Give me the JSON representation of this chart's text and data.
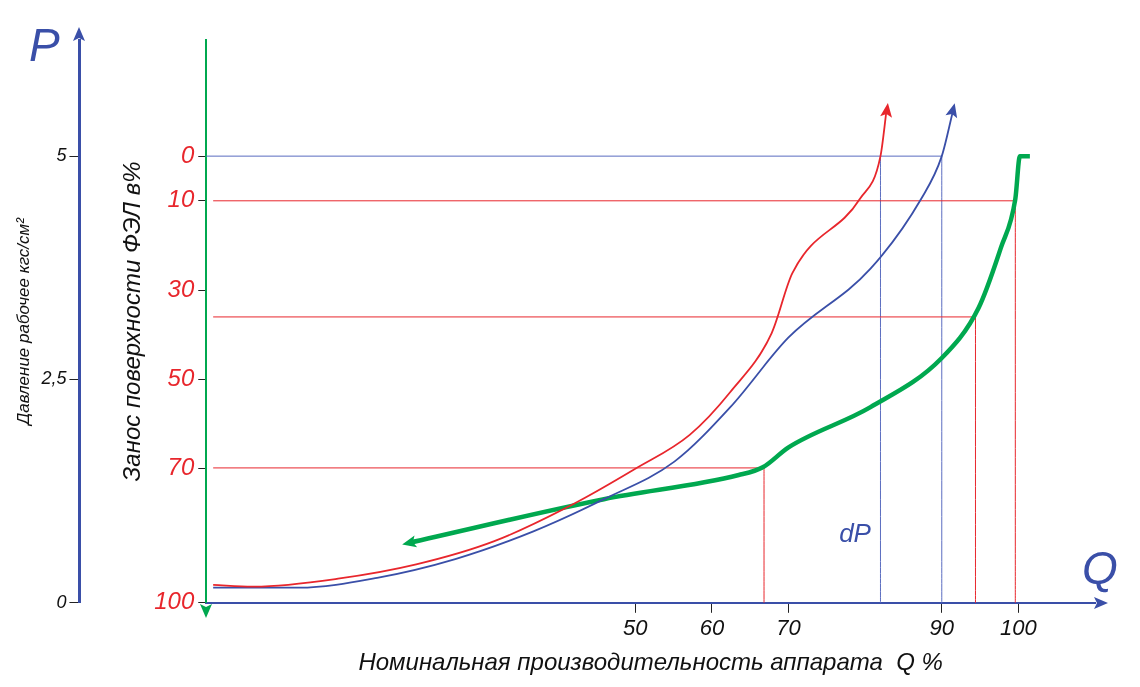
{
  "chart_data": {
    "type": "line",
    "xlabel": "Номинальная производительность аппарата  Q %",
    "ylabel": "Давление рабочее кгс/см²",
    "y2label": "Занос поверхности ФЭЛ в%",
    "annotations": [
      "P",
      "Q",
      "dP"
    ],
    "xlim": [
      -6,
      110
    ],
    "xticks": [
      50,
      60,
      70,
      90,
      100
    ],
    "ylim": [
      0,
      6.3
    ],
    "yticks": [
      0,
      {
        "value": 2.5,
        "label": "2,5"
      },
      5
    ],
    "y2lim": [
      100,
      -26
    ],
    "y2ticks": [
      0,
      10,
      30,
      50,
      70,
      100
    ],
    "grid": false,
    "legend": false,
    "marker": "none",
    "series": [
      {
        "color": "#e8262c",
        "x": [
          -5.1,
          0,
          11.2,
          21.4,
          31.6,
          41.8,
          50,
          57.1,
          62.4,
          67.8,
          70.5,
          79.3,
          82,
          82.8
        ],
        "values": [
          0.2,
          0.18,
          0.27,
          0.43,
          0.69,
          1.1,
          1.5,
          1.88,
          2.36,
          3.02,
          3.69,
          4.52,
          5,
          5.52
        ]
      },
      {
        "color": "#3a4fa8",
        "x": [
          -5.1,
          6.1,
          16.3,
          26.5,
          36.7,
          45.9,
          55.1,
          62.4,
          70,
          80.7,
          87.3,
          90,
          91.5
        ],
        "values": [
          0.17,
          0.17,
          0.28,
          0.49,
          0.8,
          1.16,
          1.58,
          2.19,
          2.97,
          3.74,
          4.52,
          5,
          5.52
        ]
      },
      {
        "color": "#00a84f",
        "x": [
          20.4,
          45.9,
          63.5,
          66.7,
          70,
          80.7,
          90,
          94.8,
          97.7,
          99.6,
          100.2,
          101.5
        ],
        "values": [
          0.67,
          1.16,
          1.43,
          1.52,
          1.74,
          2.19,
          2.74,
          3.3,
          3.97,
          4.52,
          5,
          5
        ]
      },
      {
        "color": "#5a6cc0",
        "x": [
          -6,
          90
        ],
        "values": [
          5,
          5
        ]
      },
      {
        "color": "#e8262c",
        "x": [
          -5.1,
          99.6
        ],
        "values": [
          4.5,
          4.5
        ]
      },
      {
        "color": "#e8262c",
        "x": [
          -5.1,
          94.4
        ],
        "values": [
          3.2,
          3.2
        ]
      },
      {
        "color": "#e8262c",
        "x": [
          -5.1,
          66.8
        ],
        "values": [
          1.51,
          1.51
        ]
      },
      {
        "color": "#e8262c",
        "x": [
          66.8,
          66.8
        ],
        "values": [
          0,
          1.51
        ]
      },
      {
        "color": "#5a6cc0",
        "x": [
          82,
          82
        ],
        "values": [
          0,
          5
        ]
      },
      {
        "color": "#5a6cc0",
        "x": [
          90,
          90
        ],
        "values": [
          0,
          5
        ]
      },
      {
        "color": "#e8262c",
        "x": [
          94.4,
          94.4
        ],
        "values": [
          0,
          3.2
        ]
      },
      {
        "color": "#e8262c",
        "x": [
          99.6,
          99.6
        ],
        "values": [
          0,
          4.5
        ]
      }
    ]
  }
}
